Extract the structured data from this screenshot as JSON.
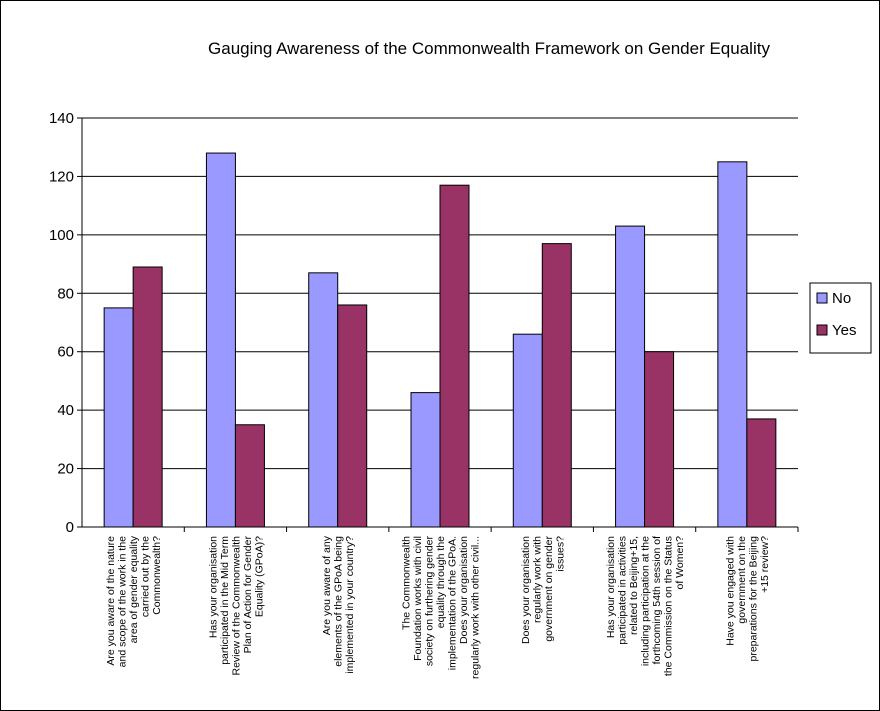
{
  "chart_data": {
    "type": "bar",
    "title": "Gauging Awareness of the Commonwealth Framework on Gender Equality",
    "xlabel": "",
    "ylabel": "",
    "ylim": [
      0,
      140
    ],
    "yticks": [
      "0",
      "20",
      "40",
      "60",
      "80",
      "100",
      "120",
      "140"
    ],
    "grid": true,
    "legend_position": "right",
    "categories": [
      [
        "Are you aware of the nature",
        "and scope of the work in the",
        "area of gender equality",
        "carried out by the",
        "Commonwealth?"
      ],
      [
        "Has your organisation",
        "participated in the Mid Term",
        "Review of the Commonwealth",
        "Plan of Action for Gender",
        "Equality (GPoA)?"
      ],
      [
        "Are you aware of any",
        "elements of the GPoA being",
        "implemented in your country?"
      ],
      [
        "The Commonwealth",
        "Foundation works with civil",
        "society on furthering gender",
        "equality through the",
        "implementation of the GPoA.",
        "Does your organisation",
        "regularly work with other civil..."
      ],
      [
        "Does your organisation",
        "regularly work with",
        "government on gender",
        "issues?"
      ],
      [
        "Has your organisation",
        "participated in activities",
        "related to Beijing+15,",
        "including participation at the",
        "forthcoming 54th session of",
        "the Commission on the Status",
        "of Women?"
      ],
      [
        "Have you engaged with",
        "government on the",
        "preparations for the Beijing",
        "+15 review?"
      ]
    ],
    "series": [
      {
        "name": "No",
        "color": "#9999ff",
        "values": [
          75,
          128,
          87,
          46,
          66,
          103,
          125
        ]
      },
      {
        "name": "Yes",
        "color": "#993366",
        "values": [
          89,
          35,
          76,
          117,
          97,
          60,
          37
        ]
      }
    ]
  }
}
